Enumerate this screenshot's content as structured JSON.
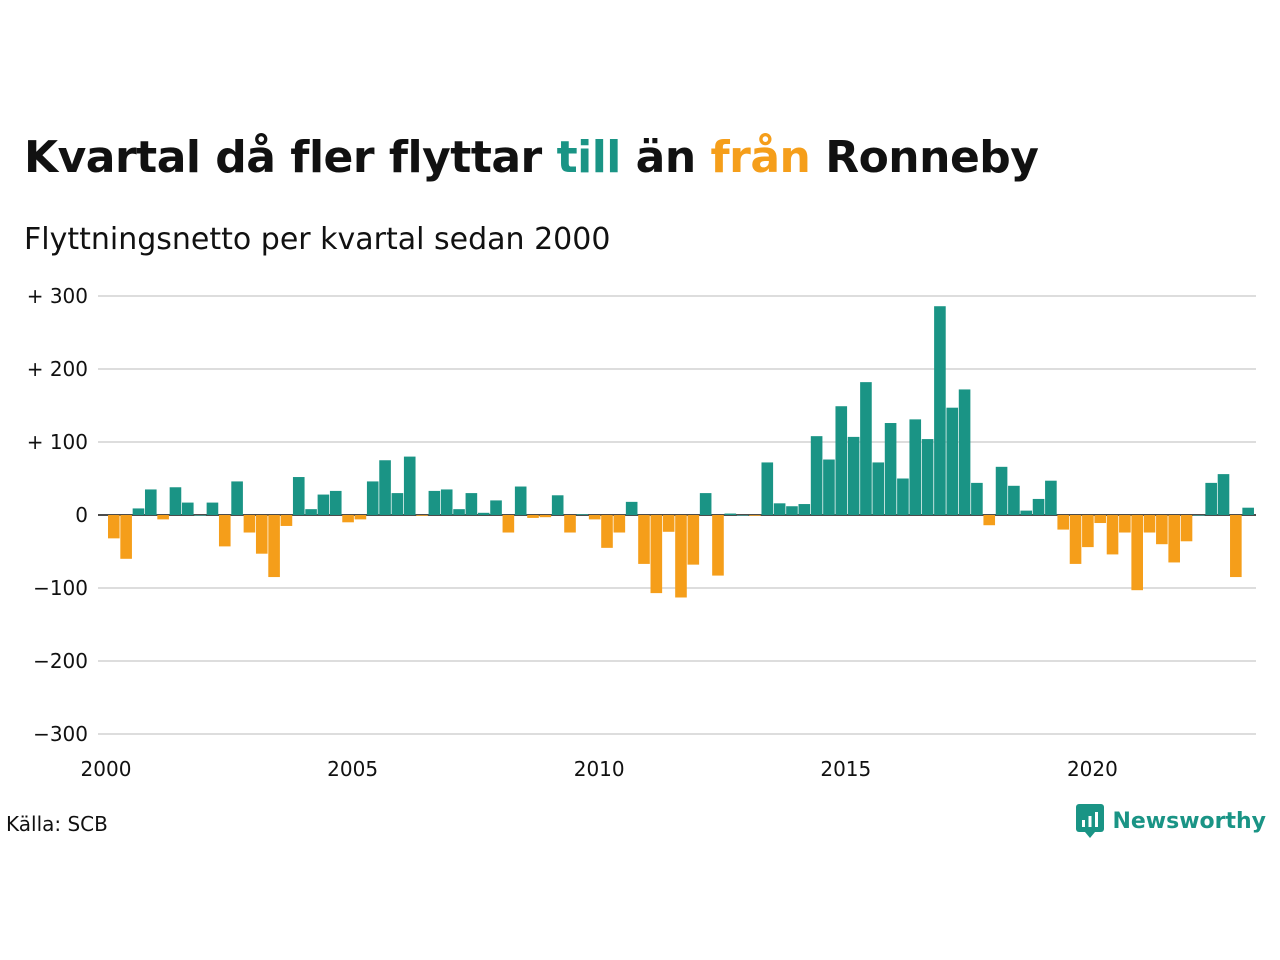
{
  "title": {
    "part1": "Kvartal då fler flyttar ",
    "word_to": "till",
    "part2": " än ",
    "word_from": "från",
    "part3": " Ronneby"
  },
  "subtitle": "Flyttningsnetto per kvartal sedan 2000",
  "source": "Källa: SCB",
  "brand": {
    "name": "Newsworthy",
    "icon": "newsworthy-logo-icon"
  },
  "colors": {
    "positive": "#1a9485",
    "negative": "#f59e1a",
    "grid": "#dddddd",
    "text": "#111111"
  },
  "chart_data": {
    "type": "bar",
    "title": "Kvartal då fler flyttar till än från Ronneby",
    "subtitle": "Flyttningsnetto per kvartal sedan 2000",
    "xlabel": "",
    "ylabel": "",
    "start": {
      "year": 2000,
      "quarter": 1
    },
    "x_ticks": [
      "2000",
      "2005",
      "2010",
      "2015",
      "2020"
    ],
    "y_ticks": [
      {
        "value": 300,
        "label": "+ 300"
      },
      {
        "value": 200,
        "label": "+ 200"
      },
      {
        "value": 100,
        "label": "+ 100"
      },
      {
        "value": 0,
        "label": "0"
      },
      {
        "value": -100,
        "label": "−100"
      },
      {
        "value": -200,
        "label": "−200"
      },
      {
        "value": -300,
        "label": "−300"
      }
    ],
    "ylim": [
      -300,
      300
    ],
    "grid": true,
    "values": [
      -32,
      -60,
      9,
      35,
      -6,
      38,
      17,
      0,
      17,
      -43,
      46,
      -24,
      -53,
      -85,
      -15,
      52,
      8,
      28,
      33,
      -10,
      -6,
      46,
      75,
      30,
      80,
      -1,
      33,
      35,
      8,
      30,
      3,
      20,
      -24,
      39,
      -4,
      -3,
      27,
      -24,
      1,
      -6,
      -45,
      -24,
      18,
      -67,
      -107,
      -23,
      -113,
      -68,
      30,
      -83,
      2,
      0,
      -1,
      72,
      16,
      12,
      15,
      108,
      76,
      149,
      107,
      182,
      72,
      126,
      50,
      131,
      104,
      286,
      147,
      172,
      44,
      -14,
      66,
      40,
      6,
      22,
      47,
      -20,
      -67,
      -44,
      -11,
      -54,
      -24,
      -103,
      -24,
      -40,
      -65,
      -36,
      0,
      44,
      56,
      -85,
      10
    ]
  }
}
